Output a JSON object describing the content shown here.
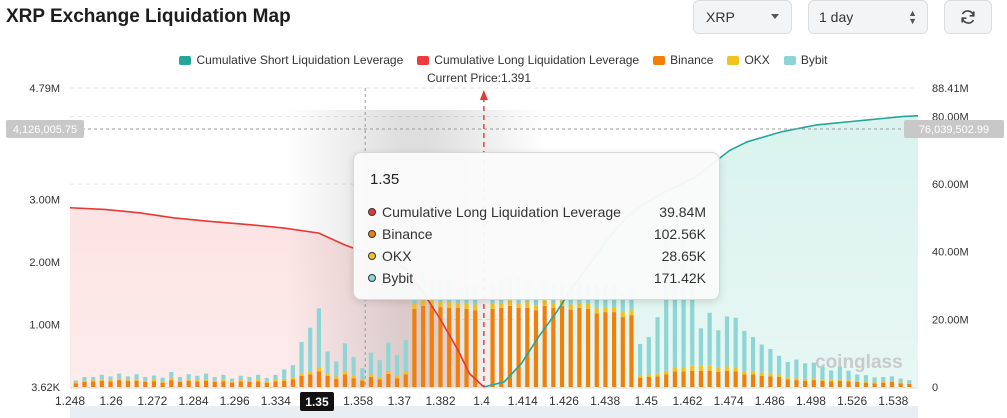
{
  "title": "XRP Exchange Liquidation Map",
  "controls": {
    "coin": "XRP",
    "range": "1 day",
    "refresh_icon": "refresh-icon"
  },
  "legend": [
    {
      "label": "Cumulative Short Liquidation Leverage",
      "color": "#26a69a"
    },
    {
      "label": "Cumulative Long Liquidation Leverage",
      "color": "#ef3b3b"
    },
    {
      "label": "Binance",
      "color": "#f0800a"
    },
    {
      "label": "OKX",
      "color": "#f2c31d"
    },
    {
      "label": "Bybit",
      "color": "#8ed6d5"
    }
  ],
  "current_price_label": "Current Price:1.391",
  "crosshair": {
    "left_value": "4,126,005.75",
    "right_value": "76,039,502.99",
    "x_value": "1.35"
  },
  "tooltip": {
    "title": "1.35",
    "rows": [
      {
        "name": "Cumulative Long Liquidation Leverage",
        "value": "39.84M",
        "color": "#e53935"
      },
      {
        "name": "Binance",
        "value": "102.56K",
        "color": "#f0800a"
      },
      {
        "name": "OKX",
        "value": "28.65K",
        "color": "#f2c31d"
      },
      {
        "name": "Bybit",
        "value": "171.42K",
        "color": "#8ed6d5"
      }
    ]
  },
  "watermark": "coinglass",
  "chart_data": {
    "type": "bar",
    "x_tick_labels": [
      "1.248",
      "1.26",
      "1.272",
      "1.284",
      "1.296",
      "1.334",
      "1.35",
      "1.358",
      "1.37",
      "1.382",
      "1.4",
      "1.414",
      "1.426",
      "1.438",
      "1.45",
      "1.462",
      "1.474",
      "1.486",
      "1.498",
      "1.526",
      "1.538"
    ],
    "left_axis_ticks": [
      "4.79M",
      "3.00M",
      "2.00M",
      "1.00M",
      "3.62K"
    ],
    "right_axis_ticks": [
      "88.41M",
      "80.00M",
      "60.00M",
      "40.00M",
      "20.00M",
      "0"
    ],
    "left_ylim": [
      0,
      4790000
    ],
    "right_ylim": [
      0,
      88410000
    ],
    "current_price": 1.391,
    "xlim": [
      1.248,
      1.541
    ],
    "bar_x": [
      1.25,
      1.253,
      1.256,
      1.259,
      1.262,
      1.265,
      1.268,
      1.271,
      1.274,
      1.277,
      1.28,
      1.283,
      1.286,
      1.289,
      1.292,
      1.295,
      1.298,
      1.301,
      1.304,
      1.307,
      1.31,
      1.313,
      1.316,
      1.319,
      1.322,
      1.325,
      1.328,
      1.331,
      1.334,
      1.337,
      1.34,
      1.343,
      1.346,
      1.349,
      1.352,
      1.355,
      1.358,
      1.361,
      1.364,
      1.367,
      1.37,
      1.373,
      1.376,
      1.379,
      1.382,
      1.385,
      1.388,
      1.394,
      1.397,
      1.4,
      1.403,
      1.406,
      1.409,
      1.412,
      1.415,
      1.418,
      1.421,
      1.424,
      1.427,
      1.43,
      1.433,
      1.436,
      1.439,
      1.442,
      1.445,
      1.448,
      1.451,
      1.454,
      1.457,
      1.46,
      1.463,
      1.466,
      1.469,
      1.472,
      1.475,
      1.478,
      1.481,
      1.484,
      1.487,
      1.49,
      1.493,
      1.496,
      1.499,
      1.502,
      1.505,
      1.508,
      1.511,
      1.514,
      1.517,
      1.52,
      1.523,
      1.526,
      1.529,
      1.532,
      1.535,
      1.538
    ],
    "series": [
      {
        "name": "Binance",
        "values": [
          60000,
          80000,
          90000,
          100000,
          90000,
          110000,
          100000,
          100000,
          80000,
          90000,
          70000,
          110000,
          80000,
          100000,
          90000,
          100000,
          80000,
          90000,
          70000,
          90000,
          80000,
          90000,
          70000,
          90000,
          100000,
          120000,
          180000,
          200000,
          250000,
          180000,
          130000,
          200000,
          140000,
          102560,
          160000,
          120000,
          210000,
          140000,
          200000,
          1250000,
          1300000,
          1300000,
          1280000,
          1270000,
          1270000,
          1250000,
          1230000,
          1250000,
          1270000,
          1300000,
          1270000,
          1270000,
          1230000,
          1300000,
          1270000,
          1300000,
          1240000,
          1270000,
          1250000,
          1180000,
          1200000,
          1200000,
          1120000,
          1150000,
          150000,
          160000,
          170000,
          200000,
          250000,
          250000,
          260000,
          260000,
          260000,
          240000,
          260000,
          250000,
          200000,
          200000,
          180000,
          170000,
          160000,
          120000,
          110000,
          100000,
          110000,
          100000,
          90000,
          100000,
          90000,
          80000,
          70000,
          60000,
          70000,
          80000,
          60000,
          50000
        ]
      },
      {
        "name": "OKX",
        "values": [
          15000,
          20000,
          20000,
          25000,
          20000,
          25000,
          20000,
          25000,
          20000,
          25000,
          20000,
          30000,
          20000,
          25000,
          20000,
          25000,
          20000,
          25000,
          15000,
          20000,
          20000,
          25000,
          15000,
          25000,
          30000,
          30000,
          40000,
          50000,
          60000,
          40000,
          40000,
          50000,
          40000,
          28650,
          40000,
          30000,
          50000,
          40000,
          50000,
          80000,
          90000,
          90000,
          80000,
          90000,
          80000,
          90000,
          90000,
          80000,
          80000,
          90000,
          80000,
          90000,
          80000,
          90000,
          80000,
          90000,
          80000,
          80000,
          90000,
          80000,
          80000,
          80000,
          80000,
          80000,
          40000,
          40000,
          50000,
          60000,
          70000,
          70000,
          80000,
          80000,
          80000,
          70000,
          70000,
          60000,
          50000,
          50000,
          50000,
          40000,
          40000,
          30000,
          30000,
          30000,
          30000,
          25000,
          25000,
          25000,
          20000,
          20000,
          20000,
          15000,
          20000,
          20000,
          15000,
          10000
        ]
      },
      {
        "name": "Bybit",
        "values": [
          30000,
          60000,
          50000,
          70000,
          60000,
          80000,
          50000,
          80000,
          60000,
          70000,
          60000,
          100000,
          60000,
          80000,
          70000,
          90000,
          60000,
          80000,
          50000,
          70000,
          60000,
          80000,
          60000,
          80000,
          150000,
          200000,
          500000,
          700000,
          950000,
          350000,
          240000,
          450000,
          300000,
          171420,
          350000,
          280000,
          450000,
          330000,
          500000,
          350000,
          450000,
          300000,
          300000,
          400000,
          250000,
          300000,
          300000,
          350000,
          350000,
          350000,
          400000,
          350000,
          300000,
          350000,
          300000,
          300000,
          350000,
          350000,
          300000,
          400000,
          350000,
          350000,
          300000,
          350000,
          500000,
          600000,
          900000,
          2100000,
          1300000,
          2100000,
          1600000,
          600000,
          850000,
          600000,
          800000,
          800000,
          650000,
          550000,
          450000,
          400000,
          300000,
          250000,
          300000,
          250000,
          250000,
          200000,
          150000,
          200000,
          150000,
          100000,
          100000,
          80000,
          70000,
          70000,
          60000,
          50000
        ]
      },
      {
        "name": "Cumulative Long Liquidation Leverage",
        "x": [
          1.248,
          1.26,
          1.272,
          1.284,
          1.296,
          1.31,
          1.322,
          1.334,
          1.343,
          1.35,
          1.358,
          1.364,
          1.37,
          1.376,
          1.382,
          1.386,
          1.391
        ],
        "values": [
          53000000,
          52500000,
          51500000,
          50000000,
          49000000,
          48000000,
          47000000,
          45500000,
          42000000,
          39840000,
          38500000,
          35000000,
          28000000,
          20000000,
          11000000,
          4000000,
          0
        ]
      },
      {
        "name": "Cumulative Short Liquidation Leverage",
        "x": [
          1.391,
          1.398,
          1.404,
          1.41,
          1.416,
          1.422,
          1.428,
          1.434,
          1.44,
          1.446,
          1.452,
          1.458,
          1.464,
          1.47,
          1.476,
          1.482,
          1.488,
          1.494,
          1.5,
          1.506,
          1.512,
          1.518,
          1.524,
          1.53,
          1.536,
          1.541
        ],
        "values": [
          0,
          1500000,
          7000000,
          15000000,
          22000000,
          30000000,
          37000000,
          44000000,
          50000000,
          54000000,
          57000000,
          59500000,
          62000000,
          66000000,
          70000000,
          72500000,
          74000000,
          75500000,
          76500000,
          77500000,
          78000000,
          78500000,
          79000000,
          79500000,
          80000000,
          80200000
        ]
      }
    ]
  }
}
